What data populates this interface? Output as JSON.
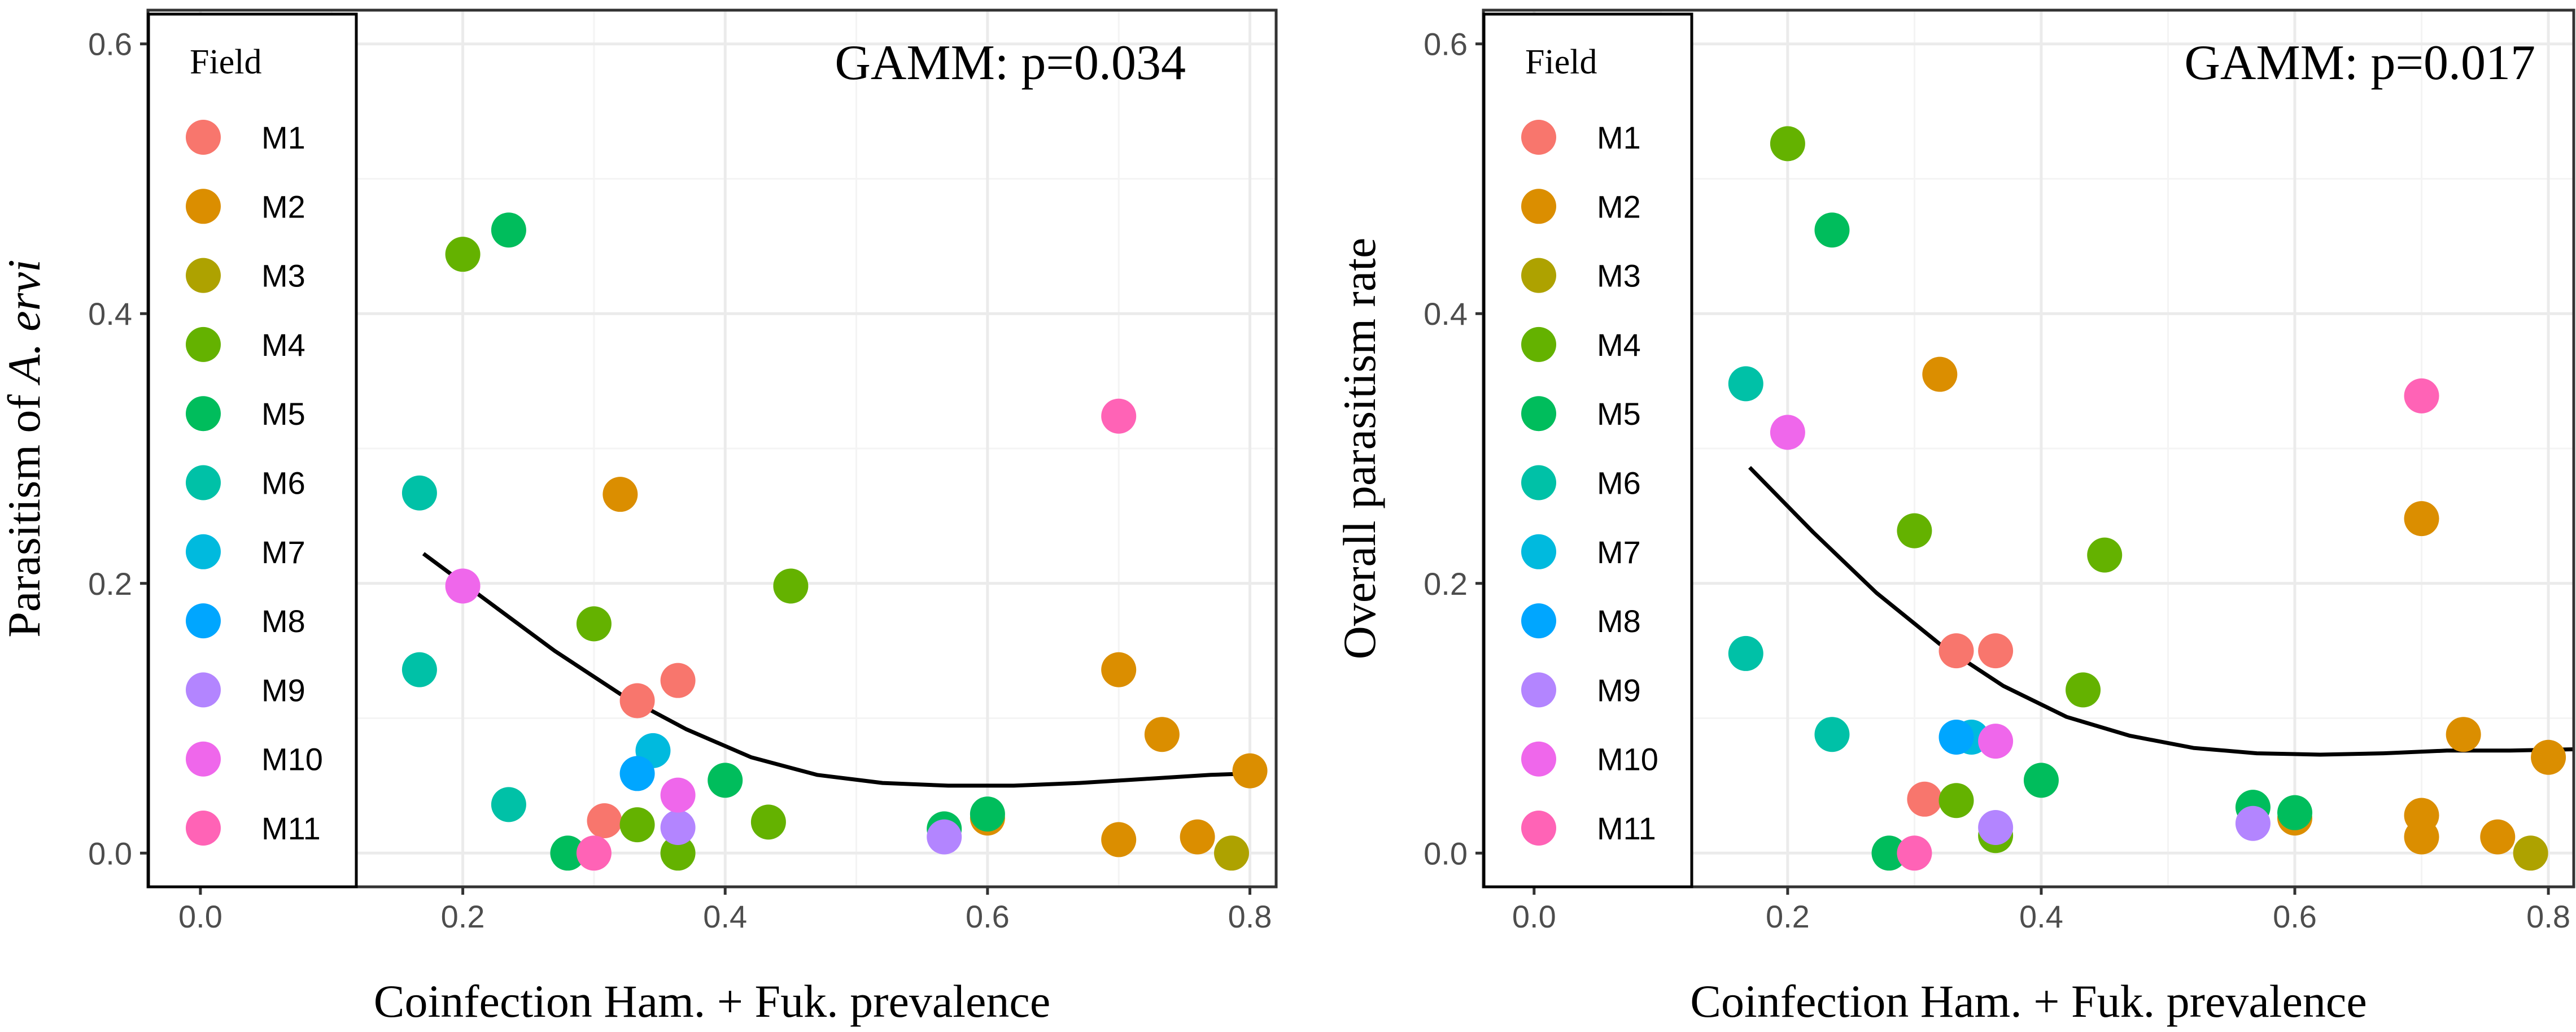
{
  "colors": {
    "M1": "#F8766D",
    "M2": "#DB8E00",
    "M3": "#AEA200",
    "M4": "#64B200",
    "M5": "#00BD5C",
    "M6": "#00C1A7",
    "M7": "#00BADE",
    "M8": "#00A6FF",
    "M9": "#B385FF",
    "M10": "#EF67EB",
    "M11": "#FF63B6",
    "grid": "#ebebeb",
    "frame": "#333333",
    "smooth": "#000000"
  },
  "chart_data": [
    {
      "type": "scatter",
      "title": "",
      "annotation": "GAMM: p=0.034",
      "xlabel": "Coinfection Ham. + Fuk. prevalence",
      "ylabel_prefix": "Parasitism of ",
      "ylabel_italic": "A. ervi",
      "xlim": [
        -0.04,
        0.82
      ],
      "ylim": [
        -0.025,
        0.625
      ],
      "xticks": [
        0.0,
        0.2,
        0.4,
        0.6,
        0.8
      ],
      "xtick_labels": [
        "0.0",
        "0.2",
        "0.4",
        "0.6",
        "0.8"
      ],
      "yticks": [
        0.0,
        0.2,
        0.4,
        0.6
      ],
      "ytick_labels": [
        "0.0",
        "0.2",
        "0.4",
        "0.6"
      ],
      "grid": true,
      "legend": {
        "title": "Field",
        "position": "top-left",
        "entries": [
          "M1",
          "M2",
          "M3",
          "M4",
          "M5",
          "M6",
          "M7",
          "M8",
          "M9",
          "M10",
          "M11"
        ]
      },
      "points": [
        {
          "field": "M1",
          "x": 0.308,
          "y": 0.024
        },
        {
          "field": "M1",
          "x": 0.333,
          "y": 0.113
        },
        {
          "field": "M1",
          "x": 0.364,
          "y": 0.128
        },
        {
          "field": "M2",
          "x": 0.32,
          "y": 0.266
        },
        {
          "field": "M2",
          "x": 0.6,
          "y": 0.026
        },
        {
          "field": "M2",
          "x": 0.7,
          "y": 0.136
        },
        {
          "field": "M2",
          "x": 0.7,
          "y": 0.01
        },
        {
          "field": "M2",
          "x": 0.733,
          "y": 0.088
        },
        {
          "field": "M2",
          "x": 0.76,
          "y": 0.012
        },
        {
          "field": "M2",
          "x": 0.8,
          "y": 0.061
        },
        {
          "field": "M3",
          "x": 0.786,
          "y": 0.0
        },
        {
          "field": "M4",
          "x": 0.2,
          "y": 0.444
        },
        {
          "field": "M4",
          "x": 0.3,
          "y": 0.17
        },
        {
          "field": "M4",
          "x": 0.333,
          "y": 0.021
        },
        {
          "field": "M4",
          "x": 0.364,
          "y": 0.0
        },
        {
          "field": "M4",
          "x": 0.433,
          "y": 0.023
        },
        {
          "field": "M4",
          "x": 0.45,
          "y": 0.198
        },
        {
          "field": "M5",
          "x": 0.235,
          "y": 0.462
        },
        {
          "field": "M5",
          "x": 0.28,
          "y": 0.0
        },
        {
          "field": "M5",
          "x": 0.4,
          "y": 0.054
        },
        {
          "field": "M5",
          "x": 0.567,
          "y": 0.018
        },
        {
          "field": "M5",
          "x": 0.6,
          "y": 0.029
        },
        {
          "field": "M6",
          "x": 0.167,
          "y": 0.267
        },
        {
          "field": "M6",
          "x": 0.167,
          "y": 0.136
        },
        {
          "field": "M6",
          "x": 0.235,
          "y": 0.036
        },
        {
          "field": "M7",
          "x": 0.345,
          "y": 0.076
        },
        {
          "field": "M8",
          "x": 0.333,
          "y": 0.059
        },
        {
          "field": "M9",
          "x": 0.364,
          "y": 0.019
        },
        {
          "field": "M9",
          "x": 0.567,
          "y": 0.012
        },
        {
          "field": "M10",
          "x": 0.2,
          "y": 0.198
        },
        {
          "field": "M10",
          "x": 0.364,
          "y": 0.043
        },
        {
          "field": "M11",
          "x": 0.3,
          "y": 0.0
        },
        {
          "field": "M11",
          "x": 0.7,
          "y": 0.324
        }
      ],
      "smooth_line": {
        "x": [
          0.17,
          0.22,
          0.27,
          0.32,
          0.37,
          0.42,
          0.47,
          0.52,
          0.57,
          0.62,
          0.67,
          0.72,
          0.77,
          0.8
        ],
        "y": [
          0.222,
          0.186,
          0.15,
          0.118,
          0.092,
          0.071,
          0.058,
          0.052,
          0.05,
          0.05,
          0.052,
          0.055,
          0.058,
          0.059
        ]
      }
    },
    {
      "type": "scatter",
      "title": "",
      "annotation": "GAMM: p=0.017",
      "xlabel": "Coinfection Ham. + Fuk. prevalence",
      "ylabel_prefix": "Overall parasitism rate",
      "ylabel_italic": "",
      "xlim": [
        -0.04,
        0.82
      ],
      "ylim": [
        -0.025,
        0.625
      ],
      "xticks": [
        0.0,
        0.2,
        0.4,
        0.6,
        0.8
      ],
      "xtick_labels": [
        "0.0",
        "0.2",
        "0.4",
        "0.6",
        "0.8"
      ],
      "yticks": [
        0.0,
        0.2,
        0.4,
        0.6
      ],
      "ytick_labels": [
        "0.0",
        "0.2",
        "0.4",
        "0.6"
      ],
      "grid": true,
      "legend": {
        "title": "Field",
        "position": "top-left",
        "entries": [
          "M1",
          "M2",
          "M3",
          "M4",
          "M5",
          "M6",
          "M7",
          "M8",
          "M9",
          "M10",
          "M11"
        ]
      },
      "points": [
        {
          "field": "M1",
          "x": 0.308,
          "y": 0.04
        },
        {
          "field": "M1",
          "x": 0.333,
          "y": 0.15
        },
        {
          "field": "M1",
          "x": 0.364,
          "y": 0.15
        },
        {
          "field": "M2",
          "x": 0.32,
          "y": 0.355
        },
        {
          "field": "M2",
          "x": 0.6,
          "y": 0.026
        },
        {
          "field": "M2",
          "x": 0.7,
          "y": 0.248
        },
        {
          "field": "M2",
          "x": 0.7,
          "y": 0.028
        },
        {
          "field": "M2",
          "x": 0.7,
          "y": 0.012
        },
        {
          "field": "M2",
          "x": 0.733,
          "y": 0.088
        },
        {
          "field": "M2",
          "x": 0.76,
          "y": 0.012
        },
        {
          "field": "M2",
          "x": 0.8,
          "y": 0.071
        },
        {
          "field": "M3",
          "x": 0.786,
          "y": 0.0
        },
        {
          "field": "M4",
          "x": 0.2,
          "y": 0.526
        },
        {
          "field": "M4",
          "x": 0.3,
          "y": 0.239
        },
        {
          "field": "M4",
          "x": 0.333,
          "y": 0.039
        },
        {
          "field": "M4",
          "x": 0.364,
          "y": 0.013
        },
        {
          "field": "M4",
          "x": 0.433,
          "y": 0.121
        },
        {
          "field": "M4",
          "x": 0.45,
          "y": 0.221
        },
        {
          "field": "M5",
          "x": 0.235,
          "y": 0.462
        },
        {
          "field": "M5",
          "x": 0.28,
          "y": 0.0
        },
        {
          "field": "M5",
          "x": 0.4,
          "y": 0.054
        },
        {
          "field": "M5",
          "x": 0.567,
          "y": 0.034
        },
        {
          "field": "M5",
          "x": 0.6,
          "y": 0.03
        },
        {
          "field": "M6",
          "x": 0.167,
          "y": 0.348
        },
        {
          "field": "M6",
          "x": 0.167,
          "y": 0.148
        },
        {
          "field": "M6",
          "x": 0.235,
          "y": 0.088
        },
        {
          "field": "M7",
          "x": 0.345,
          "y": 0.086
        },
        {
          "field": "M8",
          "x": 0.333,
          "y": 0.086
        },
        {
          "field": "M9",
          "x": 0.364,
          "y": 0.019
        },
        {
          "field": "M9",
          "x": 0.567,
          "y": 0.022
        },
        {
          "field": "M10",
          "x": 0.2,
          "y": 0.312
        },
        {
          "field": "M10",
          "x": 0.364,
          "y": 0.083
        },
        {
          "field": "M11",
          "x": 0.3,
          "y": 0.0
        },
        {
          "field": "M11",
          "x": 0.7,
          "y": 0.339
        }
      ],
      "smooth_line": {
        "x": [
          0.17,
          0.22,
          0.27,
          0.32,
          0.37,
          0.42,
          0.47,
          0.52,
          0.57,
          0.62,
          0.67,
          0.72,
          0.77,
          0.82
        ],
        "y": [
          0.286,
          0.238,
          0.193,
          0.155,
          0.124,
          0.101,
          0.087,
          0.078,
          0.074,
          0.073,
          0.074,
          0.076,
          0.076,
          0.077
        ]
      }
    }
  ]
}
